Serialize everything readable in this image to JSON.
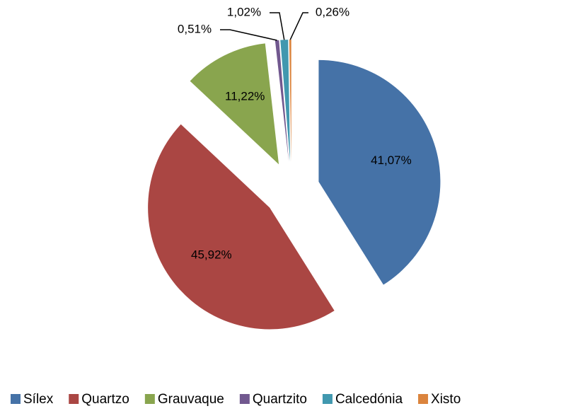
{
  "chart_data": {
    "type": "pie",
    "categories": [
      "Sílex",
      "Quartzo",
      "Grauvaque",
      "Quartzito",
      "Calcedónia",
      "Xisto"
    ],
    "values": [
      41.07,
      45.92,
      11.22,
      0.51,
      1.02,
      0.26
    ],
    "value_labels": [
      "41,07%",
      "45,92%",
      "11,22%",
      "0,51%",
      "1,02%",
      "0,26%"
    ],
    "colors": [
      "#4572a7",
      "#aa4643",
      "#89a54e",
      "#71588f",
      "#4198af",
      "#db843d"
    ],
    "legend": "bottom"
  }
}
